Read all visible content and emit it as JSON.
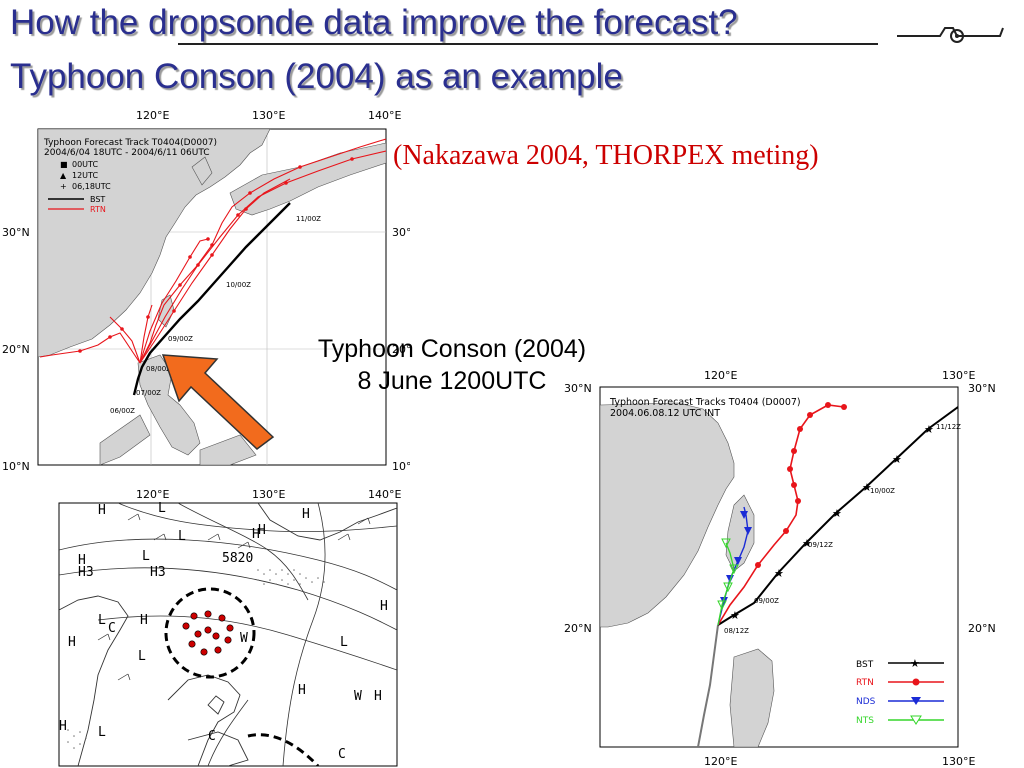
{
  "slide": {
    "title_line1": "How the dropsonde data improve the forecast?",
    "title_line2": "Typhoon Conson (2004) as an example",
    "citation": "(Nakazawa 2004, THORPEX meting)",
    "caption_line1": "Typhoon Conson (2004)",
    "caption_line2": "8 June 1200UTC"
  },
  "colors": {
    "title": "#2a2f8f",
    "citation": "#cc0000",
    "arrow": "#f26b1d",
    "bst": "#000000",
    "rtn": "#e8151b",
    "nds": "#1a2bd6",
    "nts": "#35d62b",
    "land": "#d3d3d3"
  },
  "map_top": {
    "title_lines": [
      "Typhoon Forecast Track T0404(D0007)",
      "2004/6/04 18UTC - 2004/6/11 06UTC"
    ],
    "legend": [
      {
        "symbol": "■",
        "label": "00UTC"
      },
      {
        "symbol": "▲",
        "label": "12UTC"
      },
      {
        "symbol": "+",
        "label": "06,18UTC"
      },
      {
        "symbol": "line-black",
        "label": "BST"
      },
      {
        "symbol": "line-red",
        "label": "RTN"
      }
    ],
    "x_ticks": [
      "120°E",
      "130°E",
      "140°E"
    ],
    "y_ticks": [
      "30°N",
      "20°N",
      "10°N"
    ],
    "track_labels": [
      "11/00Z",
      "10/00Z",
      "09/00Z",
      "08/00Z",
      "07/00Z",
      "06/00Z"
    ]
  },
  "map_bottom": {
    "labels": [
      "H",
      "L",
      "H",
      "L",
      "H",
      "L",
      "H",
      "H",
      "C",
      "H",
      "L",
      "L",
      "H",
      "L",
      "C",
      "W",
      "H",
      "C",
      "L",
      "H",
      "H",
      "H",
      "5820",
      "H3",
      "H3",
      "W"
    ]
  },
  "map_right": {
    "title_lines": [
      "Typhoon Forecast Tracks T0404 (D0007)",
      "2004.06.08.12 UTC INT"
    ],
    "x_ticks": [
      "120°E",
      "130°E"
    ],
    "y_ticks": [
      "30°N",
      "20°N"
    ],
    "track_labels": [
      "11/12Z",
      "10/00Z",
      "09/12Z",
      "09/00Z",
      "08/12Z"
    ],
    "legend": [
      {
        "label": "BST",
        "marker": "star",
        "color": "#000000"
      },
      {
        "label": "RTN",
        "marker": "circle",
        "color": "#e8151b"
      },
      {
        "label": "NDS",
        "marker": "triangle-down",
        "color": "#1a2bd6"
      },
      {
        "label": "NTS",
        "marker": "triangle-open",
        "color": "#35d62b"
      }
    ]
  }
}
